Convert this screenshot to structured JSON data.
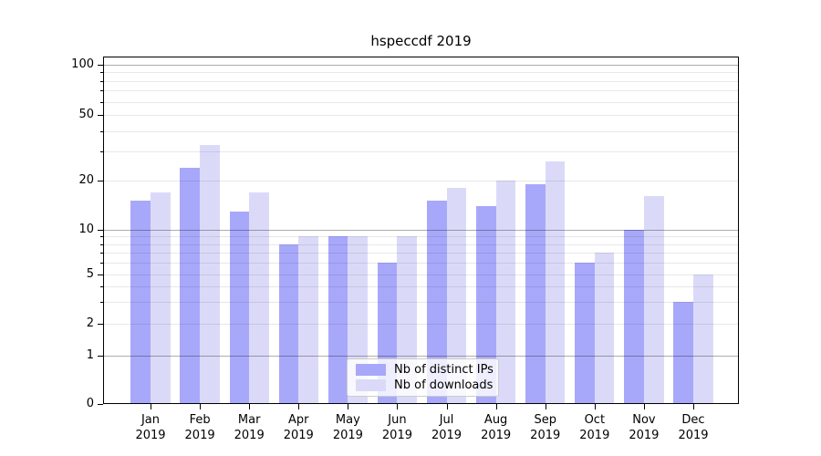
{
  "chart_data": {
    "type": "bar",
    "title": "hspeccdf 2019",
    "categories": [
      "Jan",
      "Feb",
      "Mar",
      "Apr",
      "May",
      "Jun",
      "Jul",
      "Aug",
      "Sep",
      "Oct",
      "Nov",
      "Dec"
    ],
    "year": "2019",
    "series": [
      {
        "name": "Nb of distinct IPs",
        "color": "#a8a8fa",
        "values": [
          15,
          24,
          13,
          8,
          9,
          6,
          15,
          14,
          19,
          6,
          10,
          3
        ]
      },
      {
        "name": "Nb of downloads",
        "color": "#dadaf8",
        "values": [
          17,
          33,
          17,
          9,
          9,
          9,
          18,
          20,
          26,
          7,
          16,
          5
        ]
      }
    ],
    "yscale": "symlog",
    "ylim": [
      0,
      115
    ],
    "yticks": [
      0,
      1,
      2,
      5,
      10,
      20,
      50,
      100
    ],
    "y_major_gridlines": [
      1,
      10,
      100
    ],
    "y_minor_gridlines": [
      2,
      3,
      4,
      5,
      6,
      7,
      8,
      9,
      20,
      30,
      40,
      50,
      60,
      70,
      80,
      90
    ],
    "y_minor_unlabeled_ticks": [
      3,
      4,
      6,
      7,
      8,
      9,
      30,
      40,
      60,
      70,
      80,
      90
    ],
    "grid": "horizontal",
    "legend_position": "lower center",
    "xlabel": "",
    "ylabel": ""
  },
  "colors": {
    "background": "#ffffff",
    "axis": "#000000",
    "grid_major": "rgba(0,0,0,0.32)",
    "grid_minor": "rgba(0,0,0,0.09)",
    "legend_border": "#cccccc"
  }
}
